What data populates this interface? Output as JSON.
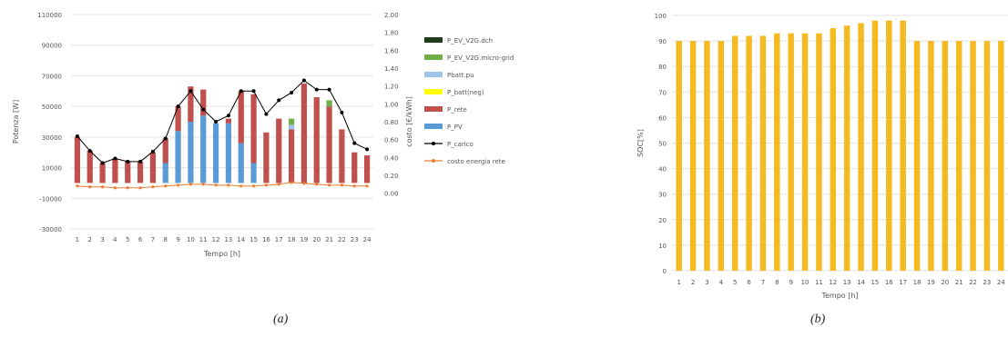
{
  "chart_data": [
    {
      "type": "bar",
      "panel": "a",
      "caption": "(a)",
      "xlabel": "Tempo [h]",
      "ylabel": "Potenza [W]",
      "y2label": "costo [€/kWh]",
      "categories": [
        "1",
        "2",
        "3",
        "4",
        "5",
        "6",
        "7",
        "8",
        "9",
        "10",
        "11",
        "12",
        "13",
        "14",
        "15",
        "16",
        "17",
        "18",
        "19",
        "20",
        "21",
        "22",
        "23",
        "24"
      ],
      "ylim": [
        -30000,
        110000
      ],
      "yticks": [
        "110000",
        "90000",
        "70000",
        "50000",
        "30000",
        "10000",
        "-10000",
        "-30000"
      ],
      "y2lim": [
        -0.4,
        2.0
      ],
      "y2ticks": [
        "2.00",
        "1.80",
        "1.60",
        "1.40",
        "1.20",
        "1.00",
        "0.80",
        "0.60",
        "0.40",
        "0.20",
        "0.00"
      ],
      "legend_position": "right",
      "series": [
        {
          "name": "P_EV_V2G.dch",
          "color": "#1f3d1a",
          "kind": "bar",
          "values": [
            0,
            0,
            0,
            0,
            0,
            0,
            0,
            0,
            0,
            0,
            0,
            0,
            0,
            0,
            0,
            0,
            0,
            0,
            0,
            0,
            0,
            0,
            0,
            0
          ]
        },
        {
          "name": "P_EV_V2G.micro-grid",
          "color": "#70ad47",
          "kind": "bar",
          "values": [
            0,
            0,
            0,
            0,
            0,
            0,
            0,
            0,
            0,
            0,
            0,
            0,
            0,
            0,
            0,
            0,
            0,
            4000,
            0,
            0,
            4000,
            0,
            0,
            0
          ]
        },
        {
          "name": "Pbatt.pu",
          "color": "#9dc3e6",
          "kind": "bar",
          "values": [
            0,
            0,
            0,
            0,
            0,
            0,
            0,
            0,
            0,
            0,
            0,
            0,
            0,
            0,
            0,
            0,
            0,
            3000,
            0,
            0,
            0,
            0,
            0,
            0
          ]
        },
        {
          "name": "P_batt(neg)",
          "color": "#ffff00",
          "kind": "bar",
          "values": [
            0,
            0,
            0,
            0,
            0,
            0,
            0,
            0,
            0,
            0,
            0,
            0,
            0,
            0,
            0,
            0,
            0,
            0,
            0,
            0,
            0,
            0,
            0,
            0
          ]
        },
        {
          "name": "P_rete",
          "color": "#c0504d",
          "kind": "bar",
          "values": [
            30000,
            21000,
            13000,
            16000,
            14000,
            14000,
            20000,
            16000,
            16000,
            23000,
            17000,
            0,
            3000,
            34000,
            45000,
            33000,
            42000,
            35000,
            65000,
            56000,
            50000,
            35000,
            20000,
            18000
          ]
        },
        {
          "name": "P_PV",
          "color": "#5b9bd5",
          "kind": "bar",
          "values": [
            0,
            0,
            0,
            0,
            0,
            0,
            0,
            13000,
            34000,
            40000,
            44000,
            39000,
            39000,
            26000,
            13000,
            0,
            0,
            0,
            0,
            0,
            0,
            0,
            0,
            0
          ]
        },
        {
          "name": "P_carico",
          "color": "#000000",
          "kind": "line",
          "values": [
            30500,
            21000,
            13000,
            16000,
            14000,
            14000,
            20500,
            29000,
            50000,
            60000,
            48000,
            40000,
            44000,
            60000,
            60000,
            45000,
            54000,
            59000,
            67000,
            61000,
            61000,
            46000,
            26000,
            22000
          ]
        },
        {
          "name": "costo energia rete",
          "color": "#ed7d31",
          "kind": "line",
          "y_axis": "secondary",
          "values": [
            0.08,
            0.07,
            0.07,
            0.06,
            0.06,
            0.06,
            0.07,
            0.08,
            0.09,
            0.1,
            0.1,
            0.09,
            0.09,
            0.08,
            0.08,
            0.09,
            0.1,
            0.12,
            0.11,
            0.1,
            0.09,
            0.09,
            0.08,
            0.08
          ]
        }
      ]
    },
    {
      "type": "bar",
      "panel": "b",
      "caption": "(b)",
      "xlabel": "Tempo [h]",
      "ylabel": "SOC[%]",
      "categories": [
        "1",
        "2",
        "3",
        "4",
        "5",
        "6",
        "7",
        "8",
        "9",
        "10",
        "11",
        "12",
        "13",
        "14",
        "15",
        "16",
        "17",
        "18",
        "19",
        "20",
        "21",
        "22",
        "23",
        "24"
      ],
      "ylim": [
        0,
        100
      ],
      "yticks": [
        "100",
        "90",
        "80",
        "70",
        "60",
        "50",
        "40",
        "30",
        "20",
        "10",
        "0"
      ],
      "series": [
        {
          "color": "#f5b921",
          "values": [
            90,
            90,
            90,
            90,
            92,
            92,
            92,
            93,
            93,
            93,
            93,
            95,
            96,
            97,
            98,
            98,
            98,
            90,
            90,
            90,
            90,
            90,
            90,
            90
          ]
        }
      ]
    }
  ]
}
